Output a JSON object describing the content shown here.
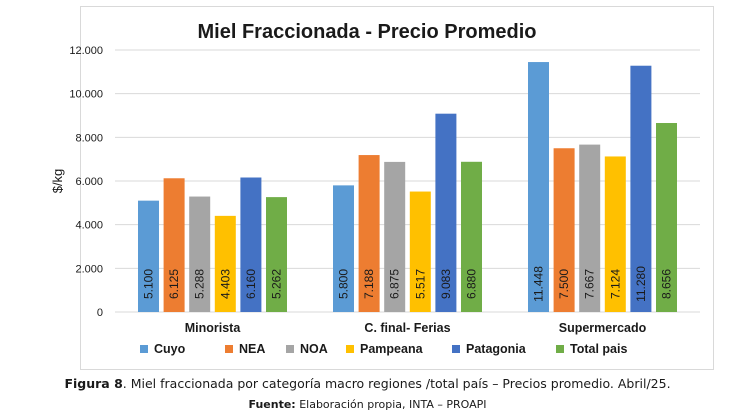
{
  "chart_data": {
    "type": "bar",
    "title": "Miel Fraccionada - Precio Promedio",
    "xlabel": "",
    "ylabel": "$/kg",
    "ylim": [
      0,
      12000
    ],
    "yticks": [
      "0",
      "2.000",
      "4.000",
      "6.000",
      "8.000",
      "10.000",
      "12.000"
    ],
    "ytick_values": [
      0,
      2000,
      4000,
      6000,
      8000,
      10000,
      12000
    ],
    "grid": true,
    "legend_position": "bottom",
    "categories": [
      "Minorista",
      "C. final- Ferias",
      "Supermercado"
    ],
    "series": [
      {
        "name": "Cuyo",
        "color": "#5b9bd5",
        "values": [
          5100,
          5800,
          11448
        ],
        "labels": [
          "5.100",
          "5.800",
          "11.448"
        ]
      },
      {
        "name": "NEA",
        "color": "#ed7d31",
        "values": [
          6125,
          7188,
          7500
        ],
        "labels": [
          "6.125",
          "7.188",
          "7.500"
        ]
      },
      {
        "name": "NOA",
        "color": "#a5a5a5",
        "values": [
          5288,
          6875,
          7667
        ],
        "labels": [
          "5.288",
          "6.875",
          "7.667"
        ]
      },
      {
        "name": "Pampeana",
        "color": "#ffc000",
        "values": [
          4403,
          5517,
          7124
        ],
        "labels": [
          "4.403",
          "5.517",
          "7.124"
        ]
      },
      {
        "name": "Patagonia",
        "color": "#4472c4",
        "values": [
          6160,
          9083,
          11280
        ],
        "labels": [
          "6.160",
          "9.083",
          "11.280"
        ]
      },
      {
        "name": "Total pais",
        "color": "#70ad47",
        "values": [
          5262,
          6880,
          8656
        ],
        "labels": [
          "5.262",
          "6.880",
          "8.656"
        ]
      }
    ]
  },
  "caption": {
    "figure_label": "Figura 8",
    "text": ". Miel fraccionada por categoría macro regiones /total país – Precios promedio. Abril/25.",
    "source_label": "Fuente:",
    "source_text": " Elaboración propia, INTA – PROAPI"
  }
}
